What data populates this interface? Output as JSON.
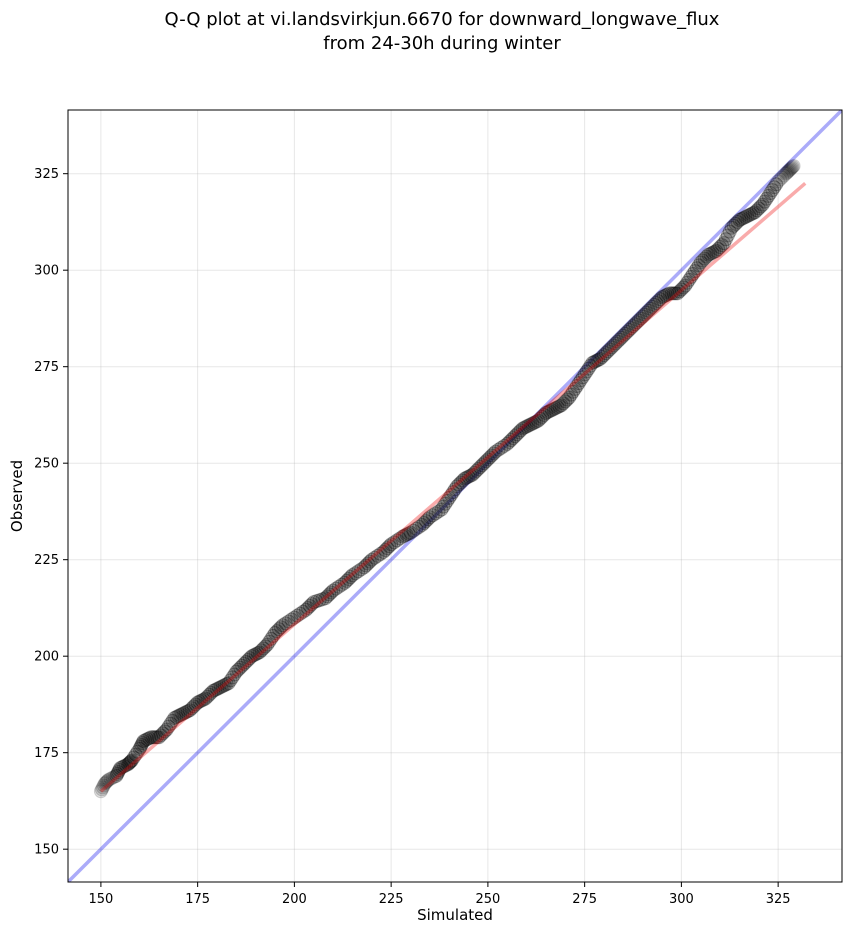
{
  "chart_data": {
    "type": "scatter",
    "title_line1": "Q-Q plot at vi.landsvirkjun.6670 for downward_longwave_flux",
    "title_line2": "from 24-30h during winter",
    "xlabel": "Simulated",
    "ylabel": "Observed",
    "xlim": [
      141.5,
      341.5
    ],
    "ylim": [
      141.5,
      341.5
    ],
    "xticks": [
      150,
      175,
      200,
      225,
      250,
      275,
      300,
      325
    ],
    "yticks": [
      150,
      175,
      200,
      225,
      250,
      275,
      300,
      325
    ],
    "grid": true,
    "reference_line": {
      "name": "y = x",
      "color": "#0000ee",
      "from": [
        141.5,
        141.5
      ],
      "to": [
        341.5,
        341.5
      ]
    },
    "fit_line": {
      "color": "#ee0000",
      "from": [
        150,
        165
      ],
      "to": [
        332,
        322.5
      ]
    },
    "quantile_points": [
      [
        150,
        165
      ],
      [
        151,
        167
      ],
      [
        152,
        168
      ],
      [
        154,
        169
      ],
      [
        155,
        171
      ],
      [
        157,
        172
      ],
      [
        158,
        173
      ],
      [
        160,
        176
      ],
      [
        161,
        178
      ],
      [
        163,
        179
      ],
      [
        165,
        179
      ],
      [
        167,
        181
      ],
      [
        169,
        184
      ],
      [
        171,
        185
      ],
      [
        173,
        186
      ],
      [
        175,
        188
      ],
      [
        177,
        189
      ],
      [
        179,
        191
      ],
      [
        181,
        192
      ],
      [
        183,
        193
      ],
      [
        185,
        196
      ],
      [
        187,
        198
      ],
      [
        189,
        200
      ],
      [
        191,
        201
      ],
      [
        193,
        203
      ],
      [
        195,
        206
      ],
      [
        197,
        208
      ],
      [
        200,
        210
      ],
      [
        203,
        212
      ],
      [
        205,
        214
      ],
      [
        208,
        215
      ],
      [
        210,
        217
      ],
      [
        213,
        219
      ],
      [
        215,
        221
      ],
      [
        218,
        223
      ],
      [
        220,
        225
      ],
      [
        223,
        227
      ],
      [
        225,
        229
      ],
      [
        228,
        231
      ],
      [
        230,
        232
      ],
      [
        233,
        234
      ],
      [
        235,
        236
      ],
      [
        238,
        238
      ],
      [
        240,
        241
      ],
      [
        242,
        244
      ],
      [
        244,
        246
      ],
      [
        246,
        247
      ],
      [
        248,
        249
      ],
      [
        250,
        251
      ],
      [
        252,
        253
      ],
      [
        255,
        255
      ],
      [
        257,
        257
      ],
      [
        259,
        259
      ],
      [
        261,
        260
      ],
      [
        263,
        261
      ],
      [
        265,
        263
      ],
      [
        267,
        264
      ],
      [
        269,
        265
      ],
      [
        271,
        267
      ],
      [
        273,
        270
      ],
      [
        275,
        273
      ],
      [
        277,
        276
      ],
      [
        279,
        277
      ],
      [
        281,
        279
      ],
      [
        283,
        281
      ],
      [
        285,
        283
      ],
      [
        287,
        285
      ],
      [
        289,
        287
      ],
      [
        291,
        289
      ],
      [
        293,
        291
      ],
      [
        295,
        293
      ],
      [
        297,
        294
      ],
      [
        299,
        294
      ],
      [
        301,
        296
      ],
      [
        303,
        299
      ],
      [
        305,
        302
      ],
      [
        307,
        304
      ],
      [
        309,
        305
      ],
      [
        311,
        307
      ],
      [
        313,
        311
      ],
      [
        315,
        313
      ],
      [
        317,
        314
      ],
      [
        319,
        315
      ],
      [
        321,
        317
      ],
      [
        323,
        320
      ],
      [
        325,
        323
      ],
      [
        327,
        325
      ],
      [
        328,
        326
      ],
      [
        329,
        327
      ]
    ]
  }
}
